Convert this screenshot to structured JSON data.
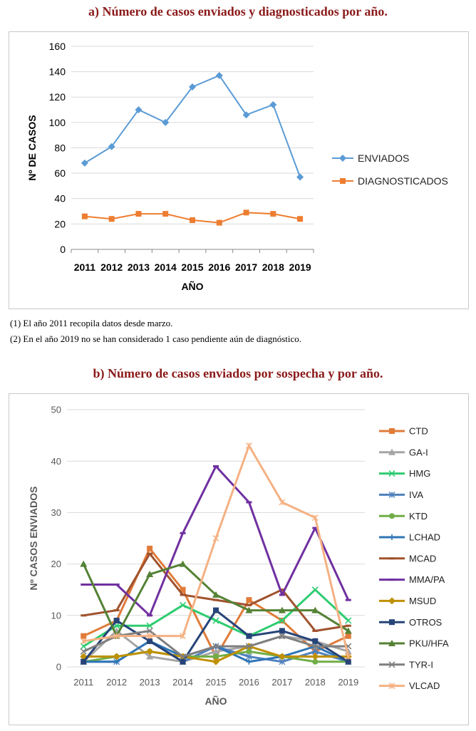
{
  "chart_a_title": "a) Número de casos enviados y diagnosticados por año.",
  "chart_b_title": "b) Número de casos enviados por sospecha y por año.",
  "notes": [
    "(1) El año 2011 recopila datos desde marzo.",
    "(2) En el año 2019 no se han considerado 1 caso pendiente aún de diagnóstico."
  ],
  "chart_data": [
    {
      "type": "line",
      "title": "a) Número de casos enviados y diagnosticados por año.",
      "xlabel": "AÑO",
      "ylabel": "Nº DE CASOS",
      "x": [
        "2011",
        "2012",
        "2013",
        "2014",
        "2015",
        "2016",
        "2017",
        "2018",
        "2019"
      ],
      "ylim": [
        0,
        160
      ],
      "yticks": [
        0,
        20,
        40,
        60,
        80,
        100,
        120,
        140,
        160
      ],
      "grid": "horizontal",
      "legend": "right",
      "series": [
        {
          "name": "ENVIADOS",
          "color": "#5b9bd5",
          "marker": "diamond",
          "values": [
            68,
            81,
            110,
            100,
            128,
            137,
            106,
            114,
            57
          ]
        },
        {
          "name": "DIAGNOSTICADOS",
          "color": "#ed7d31",
          "marker": "square",
          "values": [
            26,
            24,
            28,
            28,
            23,
            21,
            29,
            28,
            24
          ]
        }
      ]
    },
    {
      "type": "line",
      "title": "b) Número de casos enviados por sospecha y por año.",
      "xlabel": "AÑO",
      "ylabel": "Nº CASOS ENVIADOS",
      "x": [
        "2011",
        "2012",
        "2013",
        "2014",
        "2015",
        "2016",
        "2017",
        "2018",
        "2019"
      ],
      "ylim": [
        0,
        50
      ],
      "yticks": [
        0,
        10,
        20,
        30,
        40,
        50
      ],
      "grid": "horizontal",
      "legend": "right",
      "series": [
        {
          "name": "CTD",
          "color": "#e07b39",
          "marker": "square",
          "values": [
            6,
            9,
            23,
            15,
            2,
            13,
            9,
            3,
            6
          ]
        },
        {
          "name": "GA-I",
          "color": "#a5a5a5",
          "marker": "triangle",
          "values": [
            1,
            7,
            2,
            1,
            3,
            4,
            6,
            5,
            3
          ]
        },
        {
          "name": "HMG",
          "color": "#2ecc71",
          "marker": "x",
          "values": [
            4,
            8,
            8,
            12,
            9,
            6,
            9,
            15,
            9
          ]
        },
        {
          "name": "IVA",
          "color": "#4f81bd",
          "marker": "star",
          "values": [
            1,
            1,
            5,
            1,
            4,
            2,
            1,
            3,
            1
          ]
        },
        {
          "name": "KTD",
          "color": "#70ad47",
          "marker": "circle",
          "values": [
            1,
            2,
            3,
            2,
            2,
            3,
            2,
            1,
            1
          ]
        },
        {
          "name": "LCHAD",
          "color": "#2e75b6",
          "marker": "plus",
          "values": [
            1,
            1,
            5,
            2,
            4,
            1,
            2,
            4,
            1
          ]
        },
        {
          "name": "MCAD",
          "color": "#a0522d",
          "marker": "dash",
          "values": [
            10,
            11,
            22,
            14,
            13,
            12,
            15,
            7,
            8
          ]
        },
        {
          "name": "MMA/PA",
          "color": "#7030a0",
          "marker": "dash",
          "values": [
            16,
            16,
            10,
            26,
            39,
            32,
            14,
            27,
            13
          ]
        },
        {
          "name": "MSUD",
          "color": "#bf9000",
          "marker": "diamond",
          "values": [
            2,
            2,
            3,
            2,
            1,
            4,
            2,
            2,
            2
          ]
        },
        {
          "name": "OTROS",
          "color": "#264478",
          "marker": "square",
          "values": [
            1,
            9,
            5,
            1,
            11,
            6,
            7,
            5,
            1
          ]
        },
        {
          "name": "PKU/HFA",
          "color": "#548235",
          "marker": "triangle",
          "values": [
            20,
            6,
            18,
            20,
            14,
            11,
            11,
            11,
            7
          ]
        },
        {
          "name": "TYR-I",
          "color": "#7f7f7f",
          "marker": "x",
          "values": [
            3,
            6,
            7,
            2,
            4,
            4,
            6,
            4,
            4
          ]
        },
        {
          "name": "VLCAD",
          "color": "#f4b183",
          "marker": "star",
          "values": [
            5,
            6,
            6,
            6,
            25,
            43,
            32,
            29,
            2
          ]
        }
      ]
    }
  ]
}
